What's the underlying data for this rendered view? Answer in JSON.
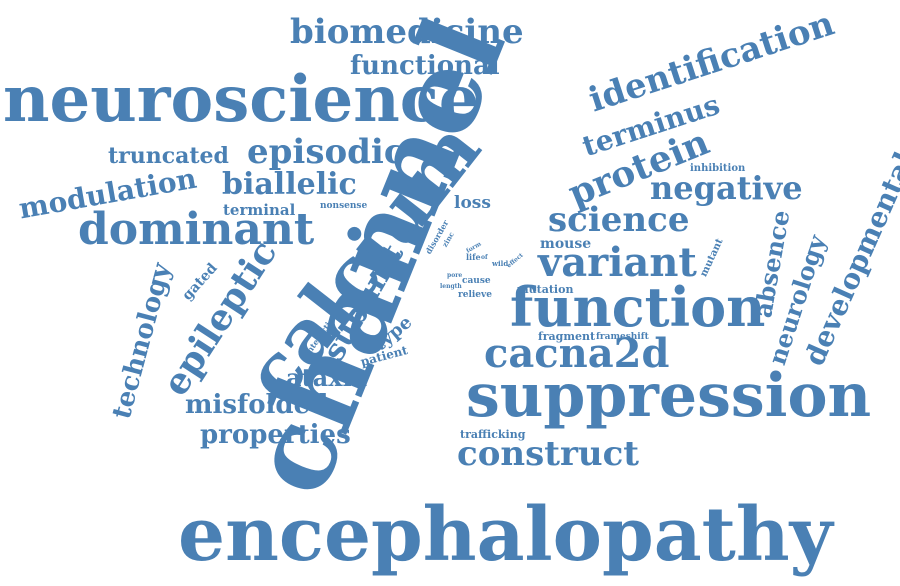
{
  "palette": {
    "word": "#4a80b4",
    "background": "#ffffff"
  },
  "words": {
    "channel": "channel",
    "calcium": "calcium",
    "encephalopathy": "encephalopathy",
    "neuroscience": "neuroscience",
    "suppression": "suppression",
    "function": "function",
    "cacna2d": "cacna2d",
    "dominant": "dominant",
    "identification": "identification",
    "variant": "variant",
    "biomedicine": "biomedicine",
    "functional": "functional",
    "episodic": "episodic",
    "biallelic": "biallelic",
    "protein": "protein",
    "negative": "negative",
    "science": "science",
    "terminus": "terminus",
    "construct": "construct",
    "epileptic": "epileptic",
    "subunit": "subunit",
    "misfolded": "misfolded",
    "properties": "properties",
    "ataxia": "ataxia",
    "technology": "technology",
    "developmental": "developmental",
    "neurology": "neurology",
    "absence": "absence",
    "modulation": "modulation",
    "truncated": "truncated",
    "terminal": "terminal",
    "nonsense": "nonsense",
    "loss": "loss",
    "mouse": "mouse",
    "mutation": "mutation",
    "relieve": "relieve",
    "fragment": "fragment",
    "frameshift": "frameshift",
    "trafficking": "trafficking",
    "gated": "gated",
    "type": "type",
    "patient": "patient",
    "interaction": "interaction",
    "inhibition": "inhibition",
    "mutant": "mutant",
    "disorder": "disorder",
    "zinc": "zinc",
    "life": "life",
    "cause": "cause",
    "length": "length",
    "pore": "pore",
    "wild": "wild",
    "effect": "effect",
    "form": "form",
    "of": "of"
  }
}
